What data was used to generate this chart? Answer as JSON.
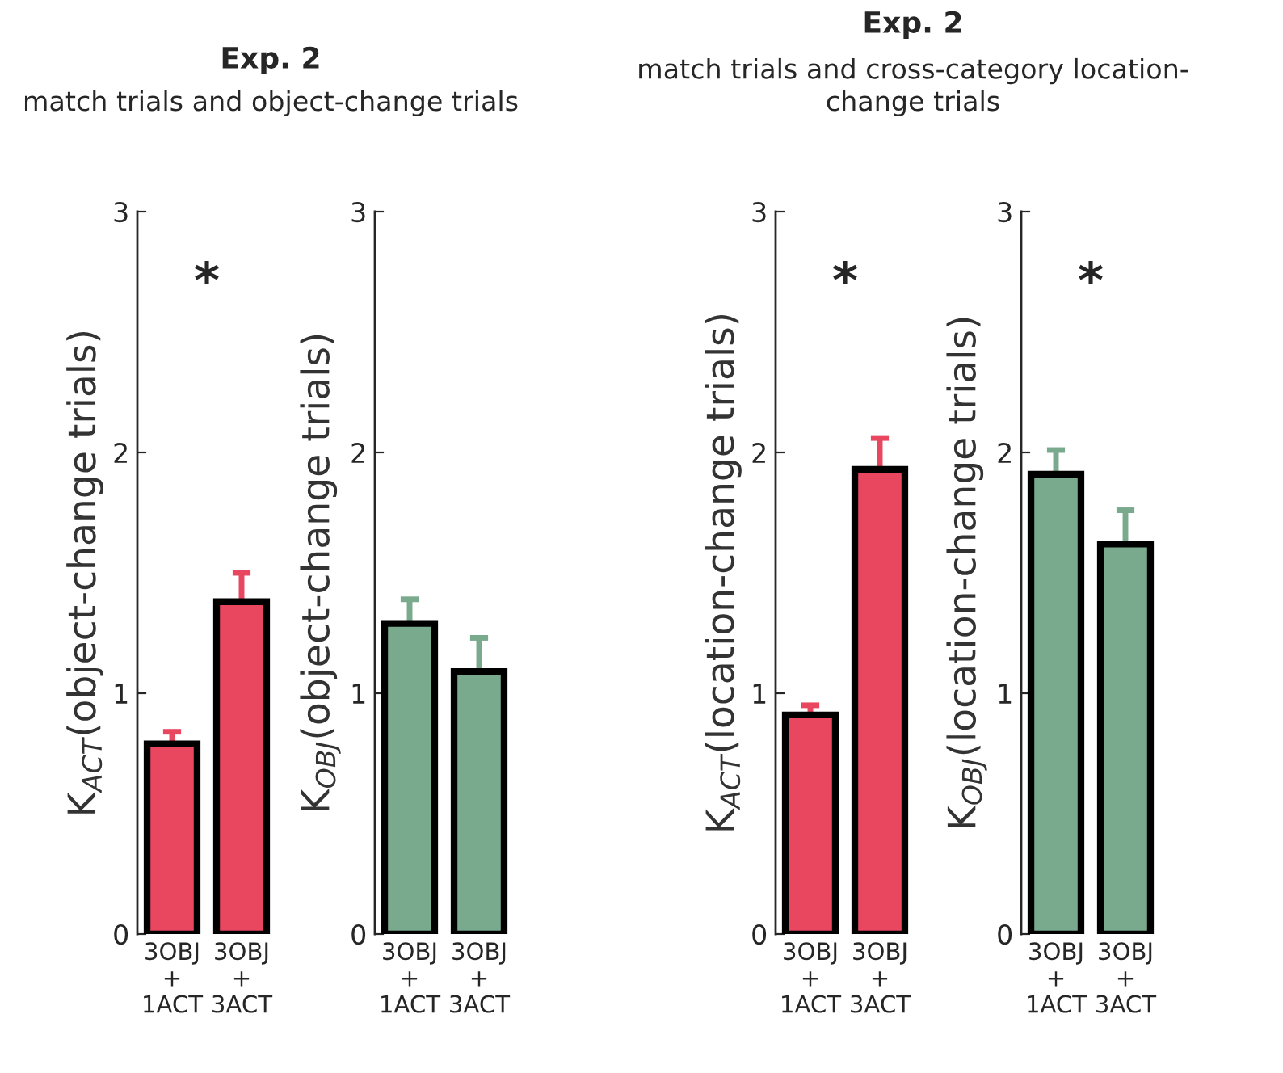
{
  "chart_data": [
    {
      "type": "bar",
      "title": "Exp. 2",
      "subtitle": "match trials and object-change trials",
      "ylabel": "K$_{ACT}$(object-change trials)",
      "categories": [
        "3OBJ\n+\n1ACT",
        "3OBJ\n+\n3ACT"
      ],
      "values": [
        0.79,
        1.38
      ],
      "errors": [
        0.05,
        0.12
      ],
      "colors": [
        "#e8475f",
        "#e8475f"
      ],
      "ylim": [
        0,
        3
      ],
      "yticks": [
        0,
        1,
        2,
        3
      ],
      "annotations": [
        "*"
      ]
    },
    {
      "type": "bar",
      "ylabel": "K$_{OBJ}$(object-change trials)",
      "categories": [
        "3OBJ\n+\n1ACT",
        "3OBJ\n+\n3ACT"
      ],
      "values": [
        1.29,
        1.09
      ],
      "errors": [
        0.1,
        0.14
      ],
      "colors": [
        "#7aaa8e",
        "#7aaa8e"
      ],
      "ylim": [
        0,
        3
      ],
      "yticks": [
        0,
        1,
        2,
        3
      ]
    },
    {
      "type": "bar",
      "title": "Exp. 2",
      "subtitle": "match trials and cross-category location-\nchange trials",
      "ylabel": "K$_{ACT}$(location-change trials)",
      "categories": [
        "3OBJ\n+\n1ACT",
        "3OBJ\n+\n3ACT"
      ],
      "values": [
        0.91,
        1.93
      ],
      "errors": [
        0.04,
        0.13
      ],
      "colors": [
        "#e8475f",
        "#e8475f"
      ],
      "ylim": [
        0,
        3
      ],
      "yticks": [
        0,
        1,
        2,
        3
      ],
      "annotations": [
        "*"
      ]
    },
    {
      "type": "bar",
      "ylabel": "K$_{OBJ}$(location-change trials)",
      "categories": [
        "3OBJ\n+\n1ACT",
        "3OBJ\n+\n3ACT"
      ],
      "values": [
        1.91,
        1.62
      ],
      "errors": [
        0.1,
        0.14
      ],
      "colors": [
        "#7aaa8e",
        "#7aaa8e"
      ],
      "ylim": [
        0,
        3
      ],
      "yticks": [
        0,
        1,
        2,
        3
      ],
      "annotations": [
        "*"
      ]
    }
  ]
}
